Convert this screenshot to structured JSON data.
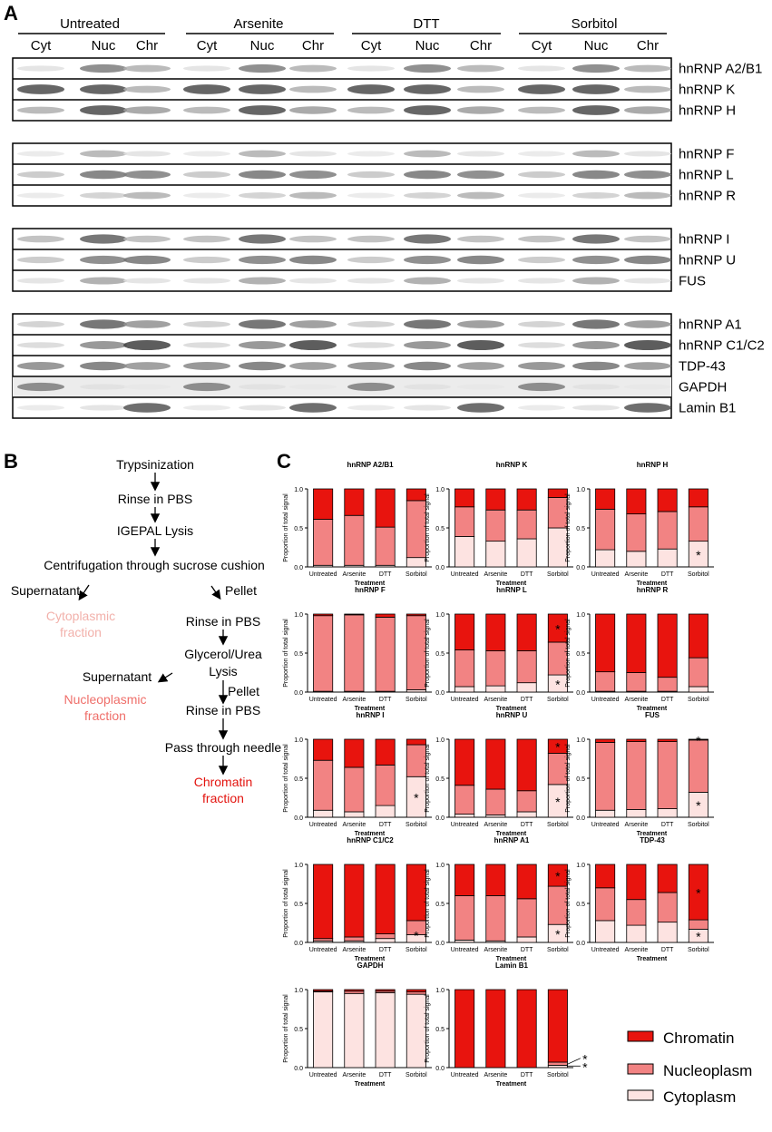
{
  "panels": {
    "a": "A",
    "b": "B",
    "c": "C"
  },
  "colors": {
    "chromatin": "#e8140e",
    "nucleoplasm": "#f28383",
    "cytoplasm": "#fde3e1",
    "flow_cyto": "#f2b1ab",
    "flow_nucleo": "#ef6f6a",
    "flow_chromatin": "#e3140f"
  },
  "blot": {
    "treatments": [
      "Untreated",
      "Arsenite",
      "DTT",
      "Sorbitol"
    ],
    "fractions": [
      "Cyt",
      "Nuc",
      "Chr"
    ],
    "groups": [
      [
        "hnRNP A2/B1",
        "hnRNP K",
        "hnRNP H"
      ],
      [
        "hnRNP F",
        "hnRNP L",
        "hnRNP R"
      ],
      [
        "hnRNP I",
        "hnRNP U",
        "FUS"
      ],
      [
        "hnRNP A1",
        "hnRNP C1/C2",
        "TDP-43",
        "GAPDH",
        "Lamin B1"
      ]
    ]
  },
  "flow": {
    "trypsinization": "Trypsinization",
    "rinse1": "Rinse in PBS",
    "igepal": "IGEPAL Lysis",
    "centrifugation": "Centrifugation through sucrose cushion",
    "supernatant1": "Supernatant",
    "pellet1": "Pellet",
    "cyto_fraction_1": "Cytoplasmic",
    "cyto_fraction_2": "fraction",
    "rinse2": "Rinse in PBS",
    "glycerol_1": "Glycerol/Urea",
    "glycerol_2": "Lysis",
    "supernatant2": "Supernatant",
    "pellet2": "Pellet",
    "nucleo_fraction_1": "Nucleoplasmic",
    "nucleo_fraction_2": "fraction",
    "rinse3": "Rinse in PBS",
    "needle": "Pass through needle",
    "chromatin_fraction_1": "Chromatin",
    "chromatin_fraction_2": "fraction"
  },
  "legend": [
    "Chromatin",
    "Nucleoplasm",
    "Cytoplasm"
  ],
  "chart_data": [
    {
      "type": "bar",
      "stacked": true,
      "title": "hnRNP A2/B1",
      "ylabel": "Proportion of total signal",
      "xlabel": "Treatment",
      "categories": [
        "Untreated",
        "Arsenite",
        "DTT",
        "Sorbitol"
      ],
      "ylim": [
        0,
        1.0
      ],
      "yticks": [
        "0.0",
        "0.5",
        "1.0"
      ],
      "series": [
        {
          "name": "Cytoplasm",
          "values": [
            0.02,
            0.02,
            0.02,
            0.12
          ]
        },
        {
          "name": "Nucleoplasm",
          "values": [
            0.59,
            0.64,
            0.49,
            0.73
          ]
        },
        {
          "name": "Chromatin",
          "values": [
            0.39,
            0.34,
            0.49,
            0.15
          ]
        }
      ],
      "annotations": []
    },
    {
      "type": "bar",
      "stacked": true,
      "title": "hnRNP K",
      "ylabel": "Proportion of total signal",
      "xlabel": "Treatment",
      "categories": [
        "Untreated",
        "Arsenite",
        "DTT",
        "Sorbitol"
      ],
      "ylim": [
        0,
        1.0
      ],
      "yticks": [
        "0.0",
        "0.5",
        "1.0"
      ],
      "series": [
        {
          "name": "Cytoplasm",
          "values": [
            0.39,
            0.33,
            0.36,
            0.5
          ]
        },
        {
          "name": "Nucleoplasm",
          "values": [
            0.38,
            0.4,
            0.37,
            0.39
          ]
        },
        {
          "name": "Chromatin",
          "values": [
            0.23,
            0.27,
            0.27,
            0.11
          ]
        }
      ],
      "annotations": []
    },
    {
      "type": "bar",
      "stacked": true,
      "title": "hnRNP H",
      "ylabel": "Proportion of total signal",
      "xlabel": "Treatment",
      "categories": [
        "Untreated",
        "Arsenite",
        "DTT",
        "Sorbitol"
      ],
      "ylim": [
        0,
        1.0
      ],
      "yticks": [
        "0.0",
        "0.5",
        "1.0"
      ],
      "series": [
        {
          "name": "Cytoplasm",
          "values": [
            0.22,
            0.2,
            0.23,
            0.33
          ]
        },
        {
          "name": "Nucleoplasm",
          "values": [
            0.52,
            0.48,
            0.48,
            0.44
          ]
        },
        {
          "name": "Chromatin",
          "values": [
            0.26,
            0.32,
            0.29,
            0.23
          ]
        }
      ],
      "annotations": [
        "*"
      ]
    },
    {
      "type": "bar",
      "stacked": true,
      "title": "hnRNP F",
      "ylabel": "Proportion of total signal",
      "xlabel": "Treatment",
      "categories": [
        "Untreated",
        "Arsenite",
        "DTT",
        "Sorbitol"
      ],
      "ylim": [
        0,
        1.0
      ],
      "yticks": [
        "0.0",
        "0.5",
        "1.0"
      ],
      "series": [
        {
          "name": "Cytoplasm",
          "values": [
            0.01,
            0.01,
            0.01,
            0.03
          ]
        },
        {
          "name": "Nucleoplasm",
          "values": [
            0.97,
            0.98,
            0.95,
            0.95
          ]
        },
        {
          "name": "Chromatin",
          "values": [
            0.02,
            0.01,
            0.04,
            0.02
          ]
        }
      ],
      "annotations": []
    },
    {
      "type": "bar",
      "stacked": true,
      "title": "hnRNP L",
      "ylabel": "Proportion of total signal",
      "xlabel": "Treatment",
      "categories": [
        "Untreated",
        "Arsenite",
        "DTT",
        "Sorbitol"
      ],
      "ylim": [
        0,
        1.0
      ],
      "yticks": [
        "0.0",
        "0.5",
        "1.0"
      ],
      "series": [
        {
          "name": "Cytoplasm",
          "values": [
            0.07,
            0.08,
            0.12,
            0.22
          ]
        },
        {
          "name": "Nucleoplasm",
          "values": [
            0.47,
            0.45,
            0.41,
            0.42
          ]
        },
        {
          "name": "Chromatin",
          "values": [
            0.46,
            0.47,
            0.47,
            0.36
          ]
        }
      ],
      "annotations": [
        "*",
        "*"
      ]
    },
    {
      "type": "bar",
      "stacked": true,
      "title": "hnRNP R",
      "ylabel": "Proportion of total signal",
      "xlabel": "Treatment",
      "categories": [
        "Untreated",
        "Arsenite",
        "DTT",
        "Sorbitol"
      ],
      "ylim": [
        0,
        1.0
      ],
      "yticks": [
        "0.0",
        "0.5",
        "1.0"
      ],
      "series": [
        {
          "name": "Cytoplasm",
          "values": [
            0.01,
            0.01,
            0.01,
            0.07
          ]
        },
        {
          "name": "Nucleoplasm",
          "values": [
            0.25,
            0.24,
            0.18,
            0.37
          ]
        },
        {
          "name": "Chromatin",
          "values": [
            0.74,
            0.75,
            0.81,
            0.56
          ]
        }
      ],
      "annotations": []
    },
    {
      "type": "bar",
      "stacked": true,
      "title": "hnRNP I",
      "ylabel": "Proportion of total signal",
      "xlabel": "Treatment",
      "categories": [
        "Untreated",
        "Arsenite",
        "DTT",
        "Sorbitol"
      ],
      "ylim": [
        0,
        1.0
      ],
      "yticks": [
        "0.0",
        "0.5",
        "1.0"
      ],
      "series": [
        {
          "name": "Cytoplasm",
          "values": [
            0.09,
            0.07,
            0.15,
            0.52
          ]
        },
        {
          "name": "Nucleoplasm",
          "values": [
            0.64,
            0.57,
            0.52,
            0.41
          ]
        },
        {
          "name": "Chromatin",
          "values": [
            0.27,
            0.36,
            0.33,
            0.07
          ]
        }
      ],
      "annotations": [
        "*"
      ]
    },
    {
      "type": "bar",
      "stacked": true,
      "title": "hnRNP U",
      "ylabel": "Proportion of total signal",
      "xlabel": "Treatment",
      "categories": [
        "Untreated",
        "Arsenite",
        "DTT",
        "Sorbitol"
      ],
      "ylim": [
        0,
        1.0
      ],
      "yticks": [
        "0.0",
        "0.5",
        "1.0"
      ],
      "series": [
        {
          "name": "Cytoplasm",
          "values": [
            0.04,
            0.03,
            0.07,
            0.42
          ]
        },
        {
          "name": "Nucleoplasm",
          "values": [
            0.37,
            0.33,
            0.27,
            0.4
          ]
        },
        {
          "name": "Chromatin",
          "values": [
            0.59,
            0.64,
            0.66,
            0.18
          ]
        }
      ],
      "annotations": [
        "*",
        "*"
      ]
    },
    {
      "type": "bar",
      "stacked": true,
      "title": "FUS",
      "ylabel": "Proportion of total signal",
      "xlabel": "Treatment",
      "categories": [
        "Untreated",
        "Arsenite",
        "DTT",
        "Sorbitol"
      ],
      "ylim": [
        0,
        1.0
      ],
      "yticks": [
        "0.0",
        "0.5",
        "1.0"
      ],
      "series": [
        {
          "name": "Cytoplasm",
          "values": [
            0.09,
            0.1,
            0.11,
            0.32
          ]
        },
        {
          "name": "Nucleoplasm",
          "values": [
            0.87,
            0.87,
            0.86,
            0.67
          ]
        },
        {
          "name": "Chromatin",
          "values": [
            0.04,
            0.03,
            0.03,
            0.01
          ]
        }
      ],
      "annotations": [
        "*",
        "*"
      ]
    },
    {
      "type": "bar",
      "stacked": true,
      "title": "hnRNP C1/C2",
      "ylabel": "Proportion of total signal",
      "xlabel": "Treatment",
      "categories": [
        "Untreated",
        "Arsenite",
        "DTT",
        "Sorbitol"
      ],
      "ylim": [
        0,
        1.0
      ],
      "yticks": [
        "0.0",
        "0.5",
        "1.0"
      ],
      "series": [
        {
          "name": "Cytoplasm",
          "values": [
            0.02,
            0.02,
            0.05,
            0.1
          ]
        },
        {
          "name": "Nucleoplasm",
          "values": [
            0.03,
            0.05,
            0.06,
            0.18
          ]
        },
        {
          "name": "Chromatin",
          "values": [
            0.95,
            0.93,
            0.89,
            0.72
          ]
        }
      ],
      "annotations": [
        "*"
      ]
    },
    {
      "type": "bar",
      "stacked": true,
      "title": "hnRNP A1",
      "ylabel": "Proportion of total signal",
      "xlabel": "Treatment",
      "categories": [
        "Untreated",
        "Arsenite",
        "DTT",
        "Sorbitol"
      ],
      "ylim": [
        0,
        1.0
      ],
      "yticks": [
        "0.0",
        "0.5",
        "1.0"
      ],
      "series": [
        {
          "name": "Cytoplasm",
          "values": [
            0.03,
            0.02,
            0.07,
            0.23
          ]
        },
        {
          "name": "Nucleoplasm",
          "values": [
            0.57,
            0.58,
            0.49,
            0.49
          ]
        },
        {
          "name": "Chromatin",
          "values": [
            0.4,
            0.4,
            0.44,
            0.28
          ]
        }
      ],
      "annotations": [
        "*",
        "*"
      ]
    },
    {
      "type": "bar",
      "stacked": true,
      "title": "TDP-43",
      "ylabel": "Proportion of total signal",
      "xlabel": "Treatment",
      "categories": [
        "Untreated",
        "Arsenite",
        "DTT",
        "Sorbitol"
      ],
      "ylim": [
        0,
        1.0
      ],
      "yticks": [
        "0.0",
        "0.5",
        "1.0"
      ],
      "series": [
        {
          "name": "Cytoplasm",
          "values": [
            0.28,
            0.22,
            0.26,
            0.17
          ]
        },
        {
          "name": "Nucleoplasm",
          "values": [
            0.42,
            0.33,
            0.38,
            0.12
          ]
        },
        {
          "name": "Chromatin",
          "values": [
            0.3,
            0.45,
            0.36,
            0.71
          ]
        }
      ],
      "annotations": [
        "*",
        "*"
      ]
    },
    {
      "type": "bar",
      "stacked": true,
      "title": "GAPDH",
      "ylabel": "Proportion of total signal",
      "xlabel": "Treatment",
      "categories": [
        "Untreated",
        "Arsenite",
        "DTT",
        "Sorbitol"
      ],
      "ylim": [
        0,
        1.0
      ],
      "yticks": [
        "0.0",
        "0.5",
        "1.0"
      ],
      "series": [
        {
          "name": "Cytoplasm",
          "values": [
            0.97,
            0.95,
            0.96,
            0.94
          ]
        },
        {
          "name": "Nucleoplasm",
          "values": [
            0.01,
            0.03,
            0.02,
            0.03
          ]
        },
        {
          "name": "Chromatin",
          "values": [
            0.02,
            0.02,
            0.02,
            0.03
          ]
        }
      ],
      "annotations": []
    },
    {
      "type": "bar",
      "stacked": true,
      "title": "Lamin B1",
      "ylabel": "Proportion of total signal",
      "xlabel": "Treatment",
      "categories": [
        "Untreated",
        "Arsenite",
        "DTT",
        "Sorbitol"
      ],
      "ylim": [
        0,
        1.0
      ],
      "yticks": [
        "0.0",
        "0.5",
        "1.0"
      ],
      "series": [
        {
          "name": "Cytoplasm",
          "values": [
            0.0,
            0.0,
            0.0,
            0.03
          ]
        },
        {
          "name": "Nucleoplasm",
          "values": [
            0.0,
            0.0,
            0.0,
            0.04
          ]
        },
        {
          "name": "Chromatin",
          "values": [
            1.0,
            1.0,
            1.0,
            0.93
          ]
        }
      ],
      "annotations": [
        "*",
        "*"
      ]
    }
  ]
}
